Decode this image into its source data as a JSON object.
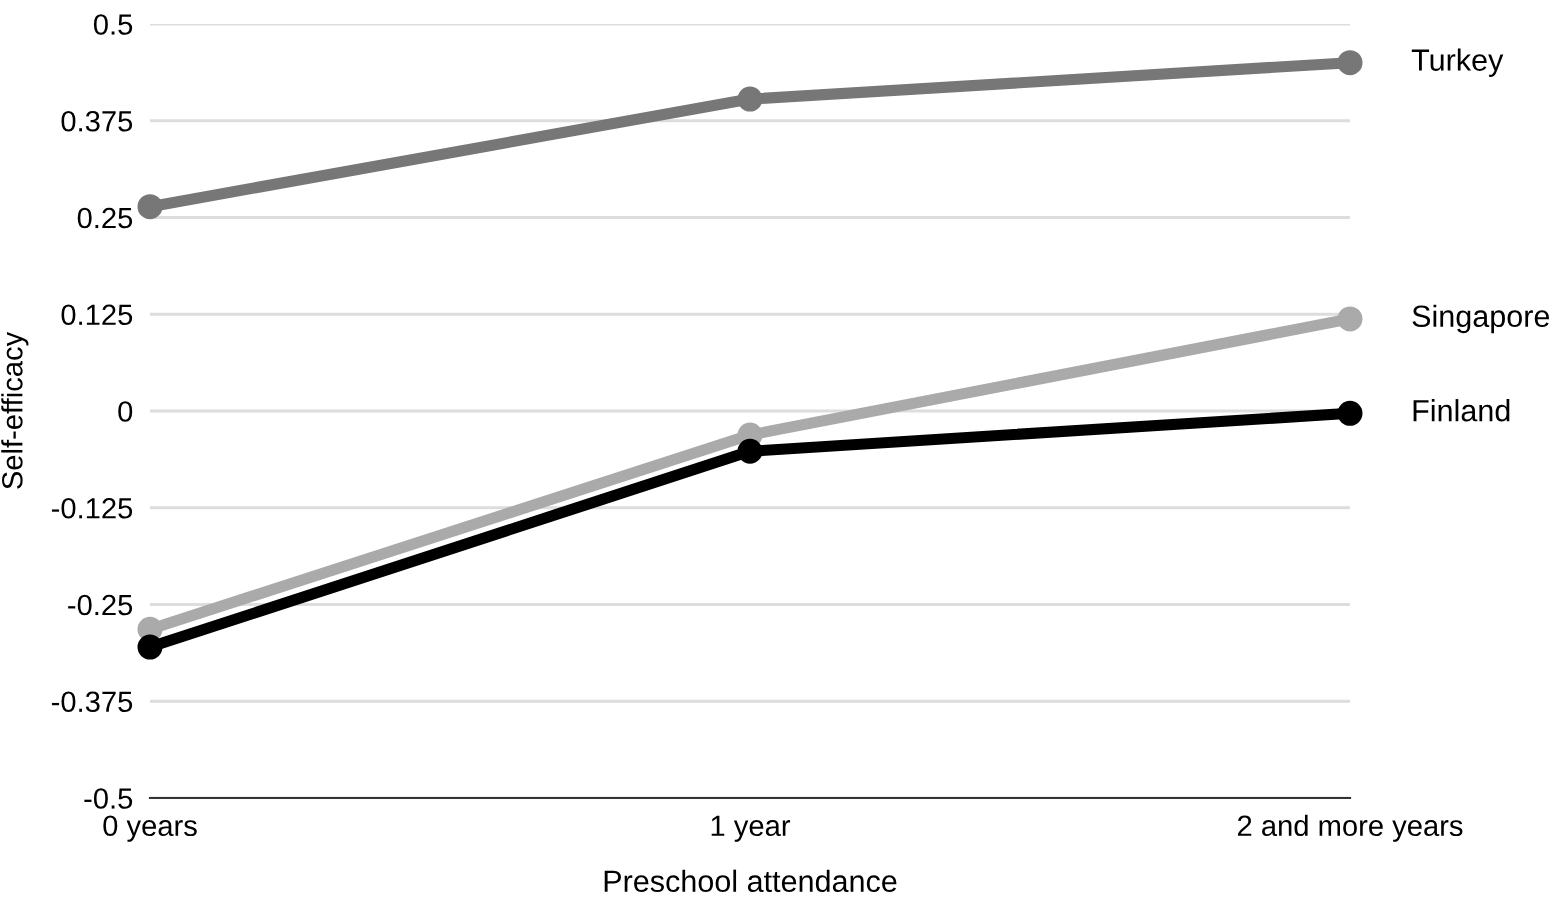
{
  "chart_data": {
    "type": "line",
    "xlabel": "Preschool attendance",
    "ylabel": "Self-efficacy",
    "categories": [
      "0 years",
      "1 year",
      "2 and more years"
    ],
    "series": [
      {
        "name": "Turkey",
        "color": "#777777",
        "values": [
          0.264,
          0.403,
          0.45
        ]
      },
      {
        "name": "Singapore",
        "color": "#aaaaaa",
        "values": [
          -0.282,
          -0.031,
          0.119
        ]
      },
      {
        "name": "Finland",
        "color": "#000000",
        "values": [
          -0.305,
          -0.052,
          -0.003
        ]
      }
    ],
    "ylim": [
      -0.5,
      0.5
    ],
    "yticks": [
      -0.5,
      -0.375,
      -0.25,
      -0.125,
      0,
      0.125,
      0.25,
      0.375,
      0.5
    ],
    "grid": "y",
    "legend": false,
    "marker": "circle",
    "line_style": "solid"
  }
}
